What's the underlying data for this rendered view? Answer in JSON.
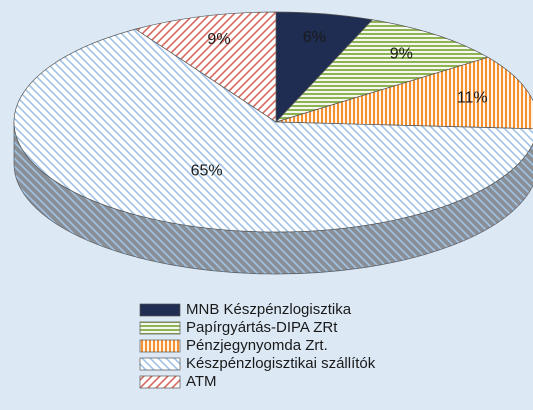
{
  "chart_data": {
    "type": "pie",
    "categories": [
      "MNB Készpénzlogisztika",
      "Papírgyártás-DIPA ZRt",
      "Pénzjegynyomda Zrt.",
      "Készpénzlogisztikai szállítók",
      "ATM"
    ],
    "values": [
      6,
      9,
      11,
      65,
      9
    ],
    "value_labels": [
      "6%",
      "9%",
      "11%",
      "65%",
      "9%"
    ],
    "colors": [
      "#1f2d52",
      "#8db352",
      "#f5902f",
      "#9fc3e6",
      "#d9685e"
    ]
  }
}
